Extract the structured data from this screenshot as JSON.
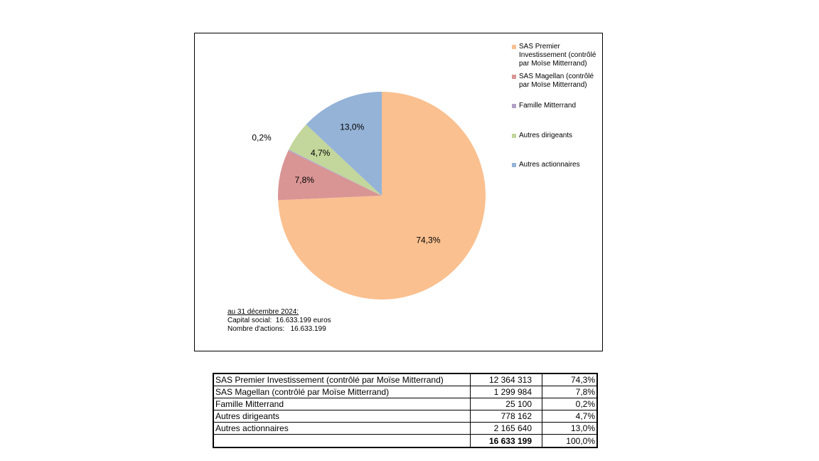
{
  "chart_data": {
    "type": "pie",
    "slices": [
      {
        "name": "SAS Premier Investissement (contrôlé par Moïse Mitterrand)",
        "value": 74.3,
        "label": "74,3%",
        "color": "#FAC090"
      },
      {
        "name": "SAS Magellan (contrôlé par Moïse Mitterrand)",
        "value": 7.8,
        "label": "7,8%",
        "color": "#D99594"
      },
      {
        "name": "Famille Mitterrand",
        "value": 0.2,
        "label": "0,2%",
        "color": "#B2A1C7"
      },
      {
        "name": "Autres dirigeants",
        "value": 4.7,
        "label": "4,7%",
        "color": "#C3D69B"
      },
      {
        "name": "Autres actionnaires",
        "value": 13.0,
        "label": "13,0%",
        "color": "#95B3D7"
      }
    ],
    "legend": [
      "SAS Premier Investissement (contrôlé par Moïse Mitterrand)",
      "SAS Magellan (contrôlé par Moïse Mitterrand)",
      "Famille Mitterrand",
      "Autres dirigeants",
      "Autres actionnaires"
    ],
    "legend_position": "right"
  },
  "caption": {
    "heading": "au 31 décembre 2024:",
    "line1": "Capital social:  16.633.199 euros",
    "line2": "Nombre d'actions:   16.633.199"
  },
  "table": {
    "rows": [
      {
        "name": "SAS Premier Investissement (contrôlé par Moïse Mitterrand)",
        "shares": "12 364 313",
        "pct": "74,3%"
      },
      {
        "name": "SAS Magellan (contrôlé par Moïse Mitterrand)",
        "shares": "1 299 984",
        "pct": "7,8%"
      },
      {
        "name": "Famille Mitterrand",
        "shares": "25 100",
        "pct": "0,2%"
      },
      {
        "name": "Autres dirigeants",
        "shares": "778 162",
        "pct": "4,7%"
      },
      {
        "name": "Autres actionnaires",
        "shares": "2 165 640",
        "pct": "13,0%"
      }
    ],
    "total": {
      "name": "",
      "shares": "16 633 199",
      "pct": "100,0%"
    }
  }
}
